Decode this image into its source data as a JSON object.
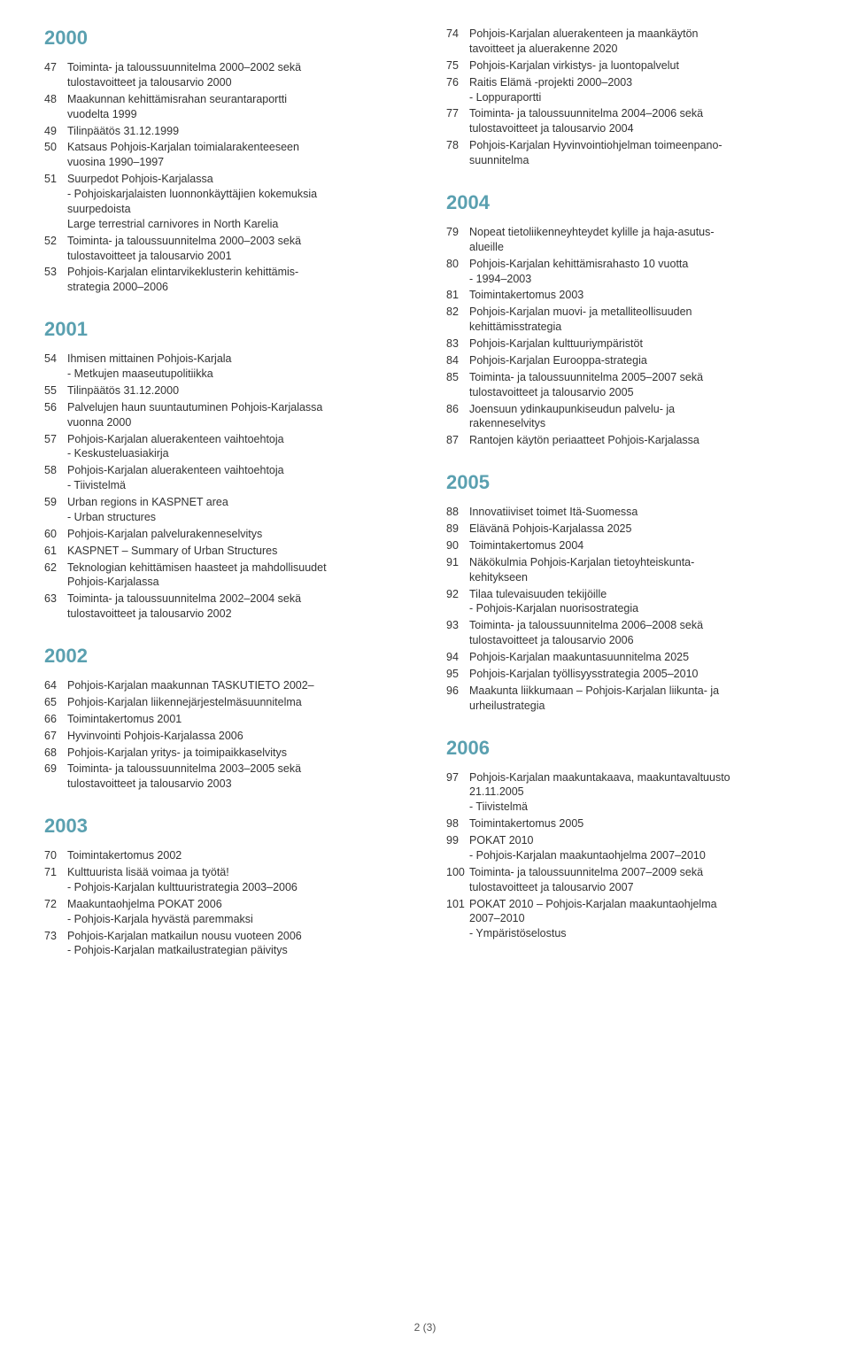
{
  "footer": "2 (3)",
  "columns": [
    {
      "sections": [
        {
          "year": "2000",
          "first": true,
          "items": [
            {
              "n": "47",
              "lines": [
                "Toiminta- ja taloussuunnitelma 2000–2002 sekä",
                "tulostavoitteet ja talousarvio 2000"
              ]
            },
            {
              "n": "48",
              "lines": [
                "Maakunnan kehittämisrahan seurantaraportti",
                "vuodelta 1999"
              ]
            },
            {
              "n": "49",
              "lines": [
                "Tilinpäätös 31.12.1999"
              ]
            },
            {
              "n": "50",
              "lines": [
                "Katsaus Pohjois-Karjalan toimialarakenteeseen",
                "vuosina 1990–1997"
              ]
            },
            {
              "n": "51",
              "lines": [
                "Suurpedot Pohjois-Karjalassa",
                "- Pohjoiskarjalaisten luonnonkäyttäjien kokemuksia",
                "  suurpedoista",
                "  Large terrestrial carnivores in North Karelia"
              ]
            },
            {
              "n": "52",
              "lines": [
                "Toiminta- ja taloussuunnitelma 2000–2003 sekä",
                "tulostavoitteet ja talousarvio 2001"
              ]
            },
            {
              "n": "53",
              "lines": [
                "Pohjois-Karjalan elintarvikeklusterin kehittämis-",
                "strategia 2000–2006"
              ]
            }
          ]
        },
        {
          "year": "2001",
          "items": [
            {
              "n": "54",
              "lines": [
                "Ihmisen mittainen Pohjois-Karjala",
                "- Metkujen maaseutupolitiikka"
              ]
            },
            {
              "n": "55",
              "lines": [
                "Tilinpäätös 31.12.2000"
              ]
            },
            {
              "n": "56",
              "lines": [
                "Palvelujen haun suuntautuminen Pohjois-Karjalassa",
                "vuonna 2000"
              ]
            },
            {
              "n": "57",
              "lines": [
                "Pohjois-Karjalan aluerakenteen vaihtoehtoja",
                "- Keskusteluasiakirja"
              ]
            },
            {
              "n": "58",
              "lines": [
                "Pohjois-Karjalan aluerakenteen vaihtoehtoja",
                "- Tiivistelmä"
              ]
            },
            {
              "n": "59",
              "lines": [
                "Urban regions in KASPNET area",
                "- Urban structures"
              ]
            },
            {
              "n": "60",
              "lines": [
                "Pohjois-Karjalan palvelurakenneselvitys"
              ]
            },
            {
              "n": "61",
              "lines": [
                "KASPNET – Summary of Urban Structures"
              ]
            },
            {
              "n": "62",
              "lines": [
                "Teknologian kehittämisen haasteet ja mahdollisuudet",
                "Pohjois-Karjalassa"
              ]
            },
            {
              "n": "63",
              "lines": [
                "Toiminta- ja taloussuunnitelma 2002–2004 sekä",
                "tulostavoitteet ja talousarvio 2002"
              ]
            }
          ]
        },
        {
          "year": "2002",
          "items": [
            {
              "n": "64",
              "lines": [
                "Pohjois-Karjalan maakunnan TASKUTIETO 2002–"
              ]
            },
            {
              "n": "65",
              "lines": [
                "Pohjois-Karjalan liikennejärjestelmäsuunnitelma"
              ]
            },
            {
              "n": "66",
              "lines": [
                "Toimintakertomus 2001"
              ]
            },
            {
              "n": "67",
              "lines": [
                "Hyvinvointi Pohjois-Karjalassa 2006"
              ]
            },
            {
              "n": "68",
              "lines": [
                "Pohjois-Karjalan yritys- ja toimipaikkaselvitys"
              ]
            },
            {
              "n": "69",
              "lines": [
                "Toiminta- ja taloussuunnitelma 2003–2005 sekä",
                "tulostavoitteet ja talousarvio 2003"
              ]
            }
          ]
        },
        {
          "year": "2003",
          "items": [
            {
              "n": "70",
              "lines": [
                "Toimintakertomus 2002"
              ]
            },
            {
              "n": "71",
              "lines": [
                "Kulttuurista lisää voimaa ja työtä!",
                "- Pohjois-Karjalan kulttuuristrategia 2003–2006"
              ]
            },
            {
              "n": "72",
              "lines": [
                "Maakuntaohjelma POKAT 2006",
                "- Pohjois-Karjala hyvästä paremmaksi"
              ]
            },
            {
              "n": "73",
              "lines": [
                "Pohjois-Karjalan matkailun nousu vuoteen 2006",
                "- Pohjois-Karjalan matkailustrategian päivitys"
              ]
            }
          ]
        }
      ]
    },
    {
      "sections": [
        {
          "year": "",
          "first": true,
          "items": [
            {
              "n": "74",
              "lines": [
                "Pohjois-Karjalan aluerakenteen ja maankäytön",
                "tavoitteet ja aluerakenne 2020"
              ]
            },
            {
              "n": "75",
              "lines": [
                "Pohjois-Karjalan virkistys- ja luontopalvelut"
              ]
            },
            {
              "n": "76",
              "lines": [
                "Raitis Elämä -projekti 2000–2003",
                "- Loppuraportti"
              ]
            },
            {
              "n": "77",
              "lines": [
                "Toiminta- ja taloussuunnitelma 2004–2006 sekä",
                "tulostavoitteet ja talousarvio 2004"
              ]
            },
            {
              "n": "78",
              "lines": [
                "Pohjois-Karjalan Hyvinvointiohjelman toimeenpano-",
                "suunnitelma"
              ]
            }
          ]
        },
        {
          "year": "2004",
          "items": [
            {
              "n": "79",
              "lines": [
                "Nopeat tietoliikenneyhteydet kylille ja haja-asutus-",
                "alueille"
              ]
            },
            {
              "n": "80",
              "lines": [
                "Pohjois-Karjalan kehittämisrahasto 10 vuotta",
                "- 1994–2003"
              ]
            },
            {
              "n": "81",
              "lines": [
                "Toimintakertomus 2003"
              ]
            },
            {
              "n": "82",
              "lines": [
                "Pohjois-Karjalan muovi- ja metalliteollisuuden",
                "kehittämisstrategia"
              ]
            },
            {
              "n": "83",
              "lines": [
                "Pohjois-Karjalan kulttuuriympäristöt"
              ]
            },
            {
              "n": "84",
              "lines": [
                "Pohjois-Karjalan Eurooppa-strategia"
              ]
            },
            {
              "n": "85",
              "lines": [
                "Toiminta- ja taloussuunnitelma 2005–2007 sekä",
                "tulostavoitteet ja talousarvio 2005"
              ]
            },
            {
              "n": "86",
              "lines": [
                "Joensuun ydinkaupunkiseudun palvelu- ja",
                "rakenneselvitys"
              ]
            },
            {
              "n": "87",
              "lines": [
                "Rantojen käytön periaatteet Pohjois-Karjalassa"
              ]
            }
          ]
        },
        {
          "year": "2005",
          "items": [
            {
              "n": "88",
              "lines": [
                "Innovatiiviset toimet Itä-Suomessa"
              ]
            },
            {
              "n": "89",
              "lines": [
                "Elävänä Pohjois-Karjalassa 2025"
              ]
            },
            {
              "n": "90",
              "lines": [
                "Toimintakertomus 2004"
              ]
            },
            {
              "n": "91",
              "lines": [
                "Näkökulmia Pohjois-Karjalan tietoyhteiskunta-",
                "kehitykseen"
              ]
            },
            {
              "n": "92",
              "lines": [
                "Tilaa tulevaisuuden tekijöille",
                "- Pohjois-Karjalan nuorisostrategia"
              ]
            },
            {
              "n": "93",
              "lines": [
                "Toiminta- ja taloussuunnitelma 2006–2008 sekä",
                "tulostavoitteet ja talousarvio 2006"
              ]
            },
            {
              "n": "94",
              "lines": [
                "Pohjois-Karjalan maakuntasuunnitelma 2025"
              ]
            },
            {
              "n": "95",
              "lines": [
                "Pohjois-Karjalan työllisyysstrategia 2005–2010"
              ]
            },
            {
              "n": "96",
              "lines": [
                "Maakunta liikkumaan – Pohjois-Karjalan liikunta- ja",
                "urheilustrategia"
              ]
            }
          ]
        },
        {
          "year": "2006",
          "items": [
            {
              "n": "97",
              "lines": [
                "Pohjois-Karjalan maakuntakaava, maakuntavaltuusto",
                "21.11.2005",
                "- Tiivistelmä"
              ]
            },
            {
              "n": "98",
              "lines": [
                "Toimintakertomus 2005"
              ]
            },
            {
              "n": "99",
              "lines": [
                "POKAT 2010",
                "- Pohjois-Karjalan maakuntaohjelma 2007–2010"
              ]
            },
            {
              "n": "100",
              "lines": [
                "Toiminta- ja taloussuunnitelma 2007–2009 sekä",
                "tulostavoitteet ja talousarvio 2007"
              ]
            },
            {
              "n": "101",
              "lines": [
                "POKAT 2010 – Pohjois-Karjalan maakuntaohjelma",
                "2007–2010",
                "- Ympäristöselostus"
              ]
            }
          ]
        }
      ]
    }
  ]
}
